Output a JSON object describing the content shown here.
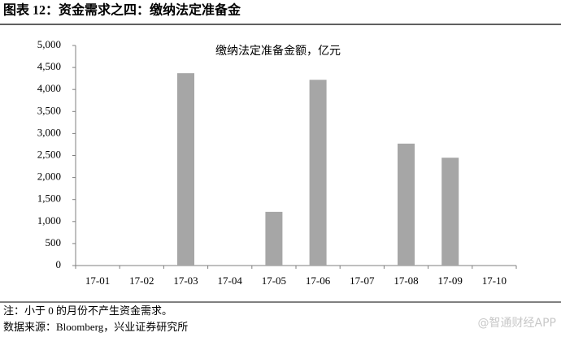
{
  "header": {
    "title": "图表 12：资金需求之四：缴纳法定准备金"
  },
  "chart_data": {
    "type": "bar",
    "title": "缴纳法定准备金额，亿元",
    "categories": [
      "17-01",
      "17-02",
      "17-03",
      "17-04",
      "17-05",
      "17-06",
      "17-07",
      "17-08",
      "17-09",
      "17-10"
    ],
    "values": [
      null,
      null,
      4370,
      null,
      1220,
      4220,
      null,
      2770,
      2450,
      null
    ],
    "color": "#a6a6a6",
    "ylim": [
      0,
      5000
    ],
    "yticks": [
      0,
      500,
      {
        "value": 1000,
        "label": "1,000"
      },
      {
        "value": 1500,
        "label": "1,500"
      },
      {
        "value": 2000,
        "label": "2,000"
      },
      {
        "value": 2500,
        "label": "2,500"
      },
      {
        "value": 3000,
        "label": "3,000"
      },
      {
        "value": 3500,
        "label": "3,500"
      },
      {
        "value": 4000,
        "label": "4,000"
      },
      {
        "value": 4500,
        "label": "4,500"
      },
      {
        "value": 5000,
        "label": "5,000"
      }
    ],
    "grid": false
  },
  "footer": {
    "note": "注：小于 0 的月份不产生资金需求。",
    "source": "数据来源：Bloomberg，兴业证券研究所",
    "watermark": "@智通财经APP"
  }
}
